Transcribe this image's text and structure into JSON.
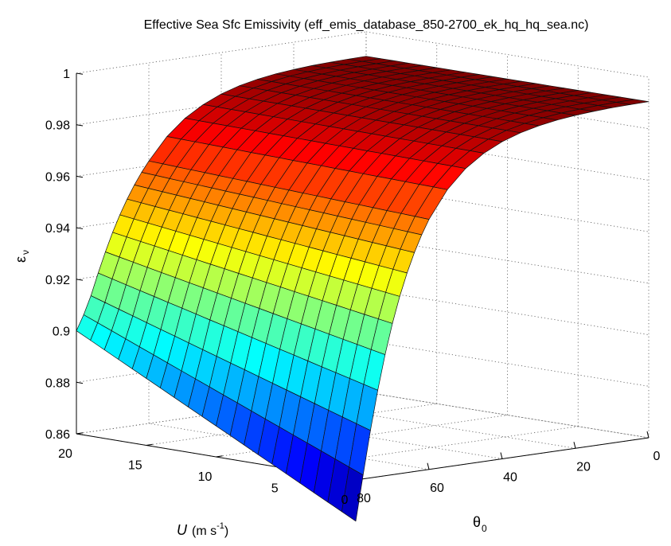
{
  "chart_data": {
    "type": "surface",
    "title": "Effective Sea Sfc Emissivity (eff_emis_database_850-2700_ek_hq_hq_sea.nc)",
    "xlabel": "θ",
    "xlabel_sub": "0",
    "ylabel": "U",
    "ylabel_units": "(m s",
    "ylabel_exp": "-1",
    "ylabel_close": ")",
    "zlabel": "ε",
    "zlabel_sub": "ν",
    "xlim": [
      0,
      80
    ],
    "ylim": [
      0,
      20
    ],
    "zlim": [
      0.86,
      1.0
    ],
    "x_ticks": [
      0,
      20,
      40,
      60,
      80
    ],
    "y_ticks": [
      0,
      5,
      10,
      15,
      20
    ],
    "z_ticks": [
      1,
      0.98,
      0.96,
      0.94,
      0.92,
      0.9,
      0.88,
      0.86
    ],
    "x_tick_labels": [
      "0",
      "20",
      "40",
      "60",
      "80"
    ],
    "y_tick_labels": [
      "0",
      "5",
      "10",
      "15",
      "20"
    ],
    "z_tick_labels": [
      "1",
      "0.98",
      "0.96",
      "0.94",
      "0.92",
      "0.9",
      "0.88",
      "0.86"
    ],
    "theta_grid": [
      0,
      5,
      10,
      15,
      20,
      25,
      30,
      35,
      40,
      45,
      50,
      55,
      60,
      62,
      64,
      66,
      68,
      70,
      72,
      74,
      76,
      78,
      80
    ],
    "wind_grid": [
      0,
      1,
      2,
      3,
      4,
      5,
      6,
      7,
      8,
      9,
      10,
      11,
      12,
      13,
      14,
      15,
      16,
      17,
      18,
      19,
      20
    ],
    "emissivity_at_u0": [
      0.9905,
      0.9904,
      0.9902,
      0.9898,
      0.9893,
      0.9885,
      0.9873,
      0.9856,
      0.9832,
      0.9797,
      0.9748,
      0.9676,
      0.9571,
      0.9515,
      0.945,
      0.9375,
      0.9288,
      0.9187,
      0.907,
      0.8936,
      0.8784,
      0.8615,
      0.844
    ],
    "emissivity_at_u20": [
      0.9905,
      0.9904,
      0.9902,
      0.9899,
      0.9894,
      0.9887,
      0.9876,
      0.9861,
      0.9839,
      0.9808,
      0.9765,
      0.9704,
      0.9619,
      0.9579,
      0.9534,
      0.9483,
      0.9426,
      0.9362,
      0.929,
      0.9212,
      0.9128,
      0.9058,
      0.9
    ],
    "grid": true
  }
}
